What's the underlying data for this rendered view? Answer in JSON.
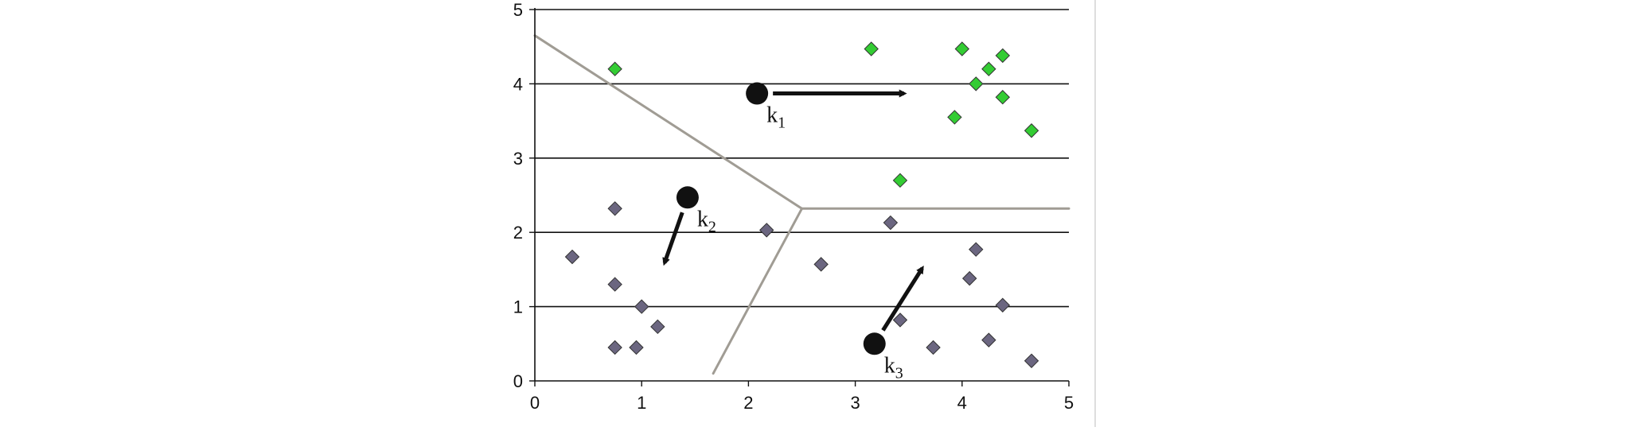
{
  "chart_data": {
    "type": "scatter",
    "title": "",
    "xlabel": "",
    "ylabel": "",
    "xlim": [
      0,
      5
    ],
    "ylim": [
      0,
      5
    ],
    "x_ticks": [
      "0",
      "1",
      "2",
      "3",
      "4",
      "5"
    ],
    "y_ticks": [
      "0",
      "1",
      "2",
      "3",
      "4",
      "5"
    ],
    "grid": "horizontal",
    "colors": {
      "cluster_1": "#33cc33",
      "other_points": "#6b6680",
      "centroid": "#111111",
      "boundary": "#a09c94",
      "grid": "#111111"
    },
    "series": [
      {
        "marker": "diamond",
        "color": "#33cc33",
        "points": [
          [
            0.75,
            4.2
          ],
          [
            3.15,
            4.47
          ],
          [
            4.0,
            4.47
          ],
          [
            4.38,
            4.38
          ],
          [
            4.25,
            4.2
          ],
          [
            4.13,
            4.0
          ],
          [
            4.38,
            3.82
          ],
          [
            3.93,
            3.55
          ],
          [
            4.65,
            3.37
          ],
          [
            3.42,
            2.7
          ]
        ]
      },
      {
        "marker": "diamond",
        "color": "#6b6680",
        "points": [
          [
            0.35,
            1.67
          ],
          [
            0.75,
            2.32
          ],
          [
            0.75,
            1.3
          ],
          [
            1.0,
            1.0
          ],
          [
            1.15,
            0.73
          ],
          [
            0.75,
            0.45
          ],
          [
            0.95,
            0.45
          ],
          [
            2.17,
            2.03
          ],
          [
            2.68,
            1.57
          ],
          [
            3.33,
            2.13
          ],
          [
            3.42,
            0.82
          ],
          [
            3.73,
            0.45
          ],
          [
            4.07,
            1.38
          ],
          [
            4.13,
            1.77
          ],
          [
            4.38,
            1.02
          ],
          [
            4.25,
            0.55
          ],
          [
            4.65,
            0.27
          ]
        ]
      }
    ],
    "centroids": [
      {
        "label": "k",
        "subscript": "1",
        "x": 2.08,
        "y": 3.87,
        "move_to": [
          3.5,
          3.87
        ]
      },
      {
        "label": "k",
        "subscript": "2",
        "x": 1.43,
        "y": 2.47,
        "move_to": [
          1.2,
          1.53
        ]
      },
      {
        "label": "k",
        "subscript": "3",
        "x": 3.18,
        "y": 0.5,
        "move_to": [
          3.65,
          1.57
        ]
      }
    ],
    "boundaries": [
      {
        "from": [
          0.0,
          4.65
        ],
        "to": [
          2.5,
          2.32
        ]
      },
      {
        "from": [
          2.5,
          2.32
        ],
        "to": [
          5.0,
          2.32
        ]
      },
      {
        "from": [
          2.5,
          2.32
        ],
        "to": [
          1.67,
          0.1
        ]
      }
    ]
  }
}
